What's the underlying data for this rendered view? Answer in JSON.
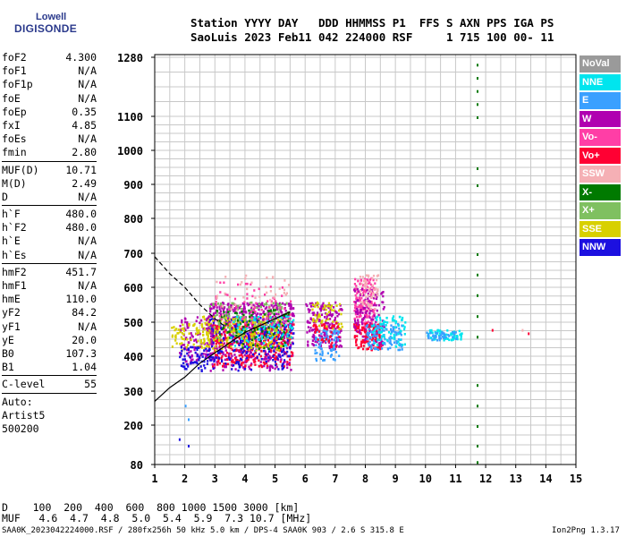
{
  "logo": {
    "line1": "Lowell",
    "line2": "DIGISONDE"
  },
  "header": {
    "line1": "Station YYYY DAY   DDD HHMMSS P1  FFS S AXN PPS IGA PS",
    "line2": "SaoLuis 2023 Feb11 042 224000 RSF     1 715 100 00- 11"
  },
  "params": [
    {
      "k": "foF2",
      "v": "4.300"
    },
    {
      "k": "foF1",
      "v": "N/A"
    },
    {
      "k": "foF1p",
      "v": "N/A"
    },
    {
      "k": "foE",
      "v": "N/A"
    },
    {
      "k": "foEp",
      "v": "0.35"
    },
    {
      "k": "fxI",
      "v": "4.85"
    },
    {
      "k": "foEs",
      "v": "N/A"
    },
    {
      "k": "fmin",
      "v": "2.80"
    },
    {
      "sep": true
    },
    {
      "k": "MUF(D)",
      "v": "10.71"
    },
    {
      "k": "M(D)",
      "v": "2.49"
    },
    {
      "k": "D",
      "v": "N/A"
    },
    {
      "sep": true
    },
    {
      "k": "h`F",
      "v": "480.0"
    },
    {
      "k": "h`F2",
      "v": "480.0"
    },
    {
      "k": "h`E",
      "v": "N/A"
    },
    {
      "k": "h`Es",
      "v": "N/A"
    },
    {
      "sep": true
    },
    {
      "k": "hmF2",
      "v": "451.7"
    },
    {
      "k": "hmF1",
      "v": "N/A"
    },
    {
      "k": "hmE",
      "v": "110.0"
    },
    {
      "k": "yF2",
      "v": "84.2"
    },
    {
      "k": "yF1",
      "v": "N/A"
    },
    {
      "k": "yE",
      "v": "20.0"
    },
    {
      "k": "B0",
      "v": "107.3"
    },
    {
      "k": "B1",
      "v": "1.04"
    },
    {
      "sep": true
    },
    {
      "k": "C-level",
      "v": "55"
    },
    {
      "sep": true
    },
    {
      "k": "Auto:",
      "v": ""
    },
    {
      "k": "Artist5",
      "v": ""
    },
    {
      "k": "500200",
      "v": ""
    }
  ],
  "legend": [
    {
      "label": "NoVal",
      "color": "#9a9a9a"
    },
    {
      "label": "NNE",
      "color": "#00e5ee"
    },
    {
      "label": "E",
      "color": "#3aa0ff"
    },
    {
      "label": "W",
      "color": "#b000b0"
    },
    {
      "label": "Vo-",
      "color": "#ff3ea6"
    },
    {
      "label": "Vo+",
      "color": "#ff0033"
    },
    {
      "label": "SSW",
      "color": "#f5b0b5"
    },
    {
      "label": "X-",
      "color": "#007a00"
    },
    {
      "label": "X+",
      "color": "#7fc060"
    },
    {
      "label": "SSE",
      "color": "#d8d000"
    },
    {
      "label": "NNW",
      "color": "#1c10e0"
    }
  ],
  "chart_data": {
    "type": "scatter",
    "title": "",
    "xlabel": "",
    "ylabel": "",
    "x_ticks": [
      1,
      2,
      3,
      4,
      5,
      6,
      7,
      8,
      9,
      10,
      11,
      12,
      13,
      14,
      15
    ],
    "xlim": [
      1,
      15
    ],
    "y_ticks": [
      80,
      200,
      300,
      400,
      500,
      600,
      700,
      800,
      900,
      1000,
      1100,
      1280
    ],
    "y_scale_note": "non-linear (virtual height, km)",
    "grid": true,
    "legend_placement": "right",
    "blobs": [
      {
        "series": "W",
        "x": [
          2.8,
          5.6
        ],
        "y": [
          360,
          560
        ],
        "n": 620
      },
      {
        "series": "Vo+",
        "x": [
          2.9,
          5.6
        ],
        "y": [
          370,
          500
        ],
        "n": 320
      },
      {
        "series": "NNW",
        "x": [
          2.8,
          5.6
        ],
        "y": [
          360,
          520
        ],
        "n": 260
      },
      {
        "series": "SSE",
        "x": [
          2.5,
          5.2
        ],
        "y": [
          420,
          520
        ],
        "n": 200
      },
      {
        "series": "X+",
        "x": [
          2.8,
          5.5
        ],
        "y": [
          440,
          560
        ],
        "n": 120
      },
      {
        "series": "X-",
        "x": [
          3.0,
          5.5
        ],
        "y": [
          420,
          540
        ],
        "n": 90
      },
      {
        "series": "NNE",
        "x": [
          3.5,
          5.6
        ],
        "y": [
          430,
          520
        ],
        "n": 70
      },
      {
        "series": "Vo-",
        "x": [
          3.0,
          5.5
        ],
        "y": [
          480,
          620
        ],
        "n": 60
      },
      {
        "series": "SSW",
        "x": [
          3.0,
          5.5
        ],
        "y": [
          500,
          640
        ],
        "n": 50
      },
      {
        "series": "W",
        "x": [
          1.8,
          2.9
        ],
        "y": [
          370,
          520
        ],
        "n": 110
      },
      {
        "series": "SSE",
        "x": [
          1.5,
          2.8
        ],
        "y": [
          420,
          500
        ],
        "n": 70
      },
      {
        "series": "NNW",
        "x": [
          1.8,
          2.8
        ],
        "y": [
          360,
          430
        ],
        "n": 60
      },
      {
        "series": "W",
        "x": [
          6.0,
          7.2
        ],
        "y": [
          420,
          560
        ],
        "n": 170
      },
      {
        "series": "E",
        "x": [
          6.3,
          7.1
        ],
        "y": [
          390,
          480
        ],
        "n": 80
      },
      {
        "series": "SSE",
        "x": [
          6.2,
          7.2
        ],
        "y": [
          480,
          560
        ],
        "n": 50
      },
      {
        "series": "Vo+",
        "x": [
          6.2,
          7.1
        ],
        "y": [
          430,
          500
        ],
        "n": 40
      },
      {
        "series": "Vo-",
        "x": [
          7.6,
          8.3
        ],
        "y": [
          480,
          630
        ],
        "n": 150
      },
      {
        "series": "Vo+",
        "x": [
          7.6,
          8.5
        ],
        "y": [
          420,
          500
        ],
        "n": 130
      },
      {
        "series": "W",
        "x": [
          7.6,
          8.6
        ],
        "y": [
          430,
          600
        ],
        "n": 120
      },
      {
        "series": "E",
        "x": [
          8.0,
          9.2
        ],
        "y": [
          420,
          500
        ],
        "n": 110
      },
      {
        "series": "NNE",
        "x": [
          8.2,
          9.3
        ],
        "y": [
          430,
          520
        ],
        "n": 80
      },
      {
        "series": "SSW",
        "x": [
          7.8,
          8.4
        ],
        "y": [
          540,
          640
        ],
        "n": 50
      },
      {
        "series": "NNE",
        "x": [
          10.0,
          11.2
        ],
        "y": [
          450,
          480
        ],
        "n": 70
      },
      {
        "series": "E",
        "x": [
          10.0,
          11.0
        ],
        "y": [
          450,
          475
        ],
        "n": 40
      }
    ],
    "points": [
      {
        "series": "X-",
        "x": 11.7,
        "y": 1260
      },
      {
        "series": "X-",
        "x": 11.7,
        "y": 1220
      },
      {
        "series": "X-",
        "x": 11.7,
        "y": 1180
      },
      {
        "series": "X-",
        "x": 11.7,
        "y": 1140
      },
      {
        "series": "X-",
        "x": 11.7,
        "y": 1100
      },
      {
        "series": "X-",
        "x": 11.7,
        "y": 950
      },
      {
        "series": "X-",
        "x": 11.7,
        "y": 900
      },
      {
        "series": "X-",
        "x": 11.7,
        "y": 700
      },
      {
        "series": "X-",
        "x": 11.7,
        "y": 640
      },
      {
        "series": "X-",
        "x": 11.7,
        "y": 580
      },
      {
        "series": "X-",
        "x": 11.7,
        "y": 520
      },
      {
        "series": "X-",
        "x": 11.7,
        "y": 460
      },
      {
        "series": "X-",
        "x": 11.7,
        "y": 320
      },
      {
        "series": "X-",
        "x": 11.7,
        "y": 260
      },
      {
        "series": "X-",
        "x": 11.7,
        "y": 200
      },
      {
        "series": "X-",
        "x": 11.7,
        "y": 140
      },
      {
        "series": "X-",
        "x": 11.7,
        "y": 90
      },
      {
        "series": "E",
        "x": 2.0,
        "y": 260
      },
      {
        "series": "E",
        "x": 2.1,
        "y": 220
      },
      {
        "series": "NNW",
        "x": 1.8,
        "y": 160
      },
      {
        "series": "NNW",
        "x": 2.1,
        "y": 140
      },
      {
        "series": "Vo+",
        "x": 12.2,
        "y": 480
      },
      {
        "series": "Vo+",
        "x": 13.4,
        "y": 470
      },
      {
        "series": "SSW",
        "x": 13.2,
        "y": 480
      }
    ],
    "curves": [
      {
        "name": "solid",
        "style": "solid",
        "x": [
          1,
          1.5,
          2,
          2.5,
          3,
          3.5,
          4,
          4.5,
          5,
          5.5
        ],
        "y": [
          270,
          310,
          340,
          380,
          410,
          440,
          470,
          490,
          510,
          530
        ]
      },
      {
        "name": "dashed",
        "style": "dashed",
        "x": [
          1,
          1.5,
          2,
          2.5,
          3,
          3.3
        ],
        "y": [
          690,
          640,
          600,
          550,
          510,
          490
        ]
      }
    ]
  },
  "bottom": {
    "line1": "D    100  200  400  600  800 1000 1500 3000 [km]",
    "line2": "MUF   4.6  4.7  4.8  5.0  5.4  5.9  7.3 10.7 [MHz]"
  },
  "footer": {
    "left": "SAA0K_2023042224000.RSF / 280fx256h 50 kHz 5.0 km / DPS-4 SAA0K 903 / 2.6 S 315.8 E",
    "right": "Ion2Png 1.3.17"
  }
}
